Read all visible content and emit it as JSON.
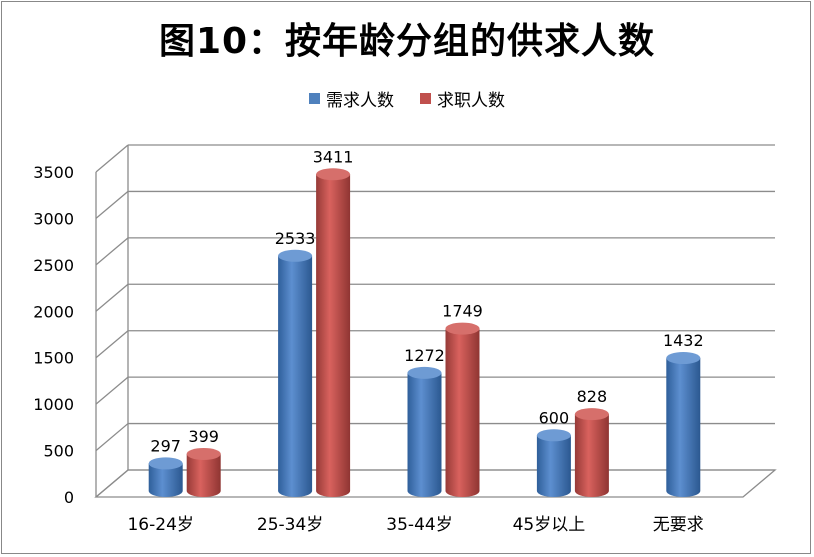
{
  "chart_data": {
    "type": "bar",
    "title": "图10：按年龄分组的供求人数",
    "categories": [
      "16-24岁",
      "25-34岁",
      "35-44岁",
      "45岁以上",
      "无要求"
    ],
    "series": [
      {
        "name": "需求人数",
        "color": "#4F81BD",
        "values": [
          297,
          2533,
          1272,
          600,
          1432
        ]
      },
      {
        "name": "求职人数",
        "color": "#C0504D",
        "values": [
          399,
          3411,
          1749,
          828,
          null
        ]
      }
    ],
    "yticks": [
      "0",
      "500",
      "1000",
      "1500",
      "2000",
      "2500",
      "3000",
      "3500"
    ],
    "ylim": [
      0,
      3500
    ],
    "grid": true,
    "legend_position": "top"
  }
}
